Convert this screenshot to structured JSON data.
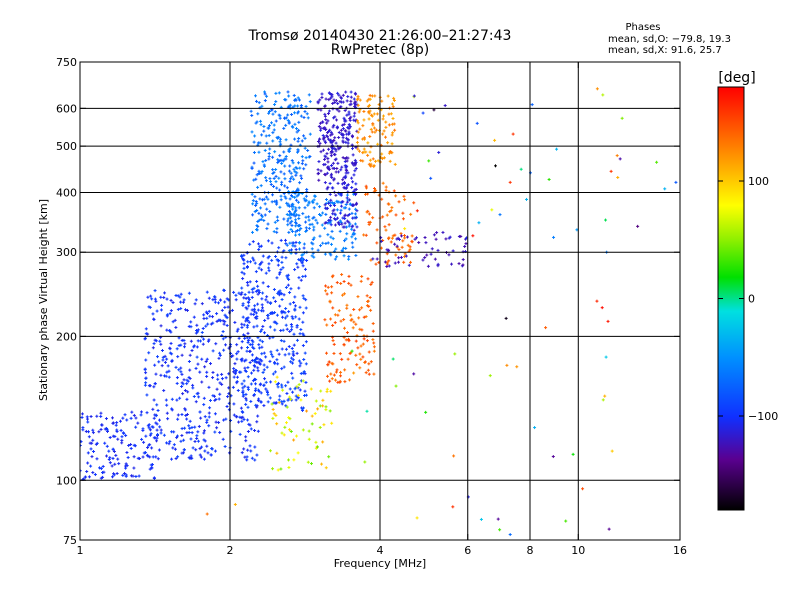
{
  "chart_data": {
    "type": "scatter",
    "title": "Tromsø 20140430 21:26:00–21:27:43",
    "subtitle": "RwPretec (8p)",
    "stats": {
      "heading": "Phases",
      "line1": "mean, sd,O: −79.8, 19.3",
      "line2": "mean, sd,X:  91.6, 25.7"
    },
    "xlabel": "Frequency [MHz]",
    "ylabel": "Stationary phase Virtual Height [km]",
    "xscale": "log",
    "yscale": "log",
    "xlim": [
      1,
      16
    ],
    "ylim": [
      75,
      750
    ],
    "xticks": [
      {
        "value": 1,
        "label": "1"
      },
      {
        "value": 2,
        "label": "2"
      },
      {
        "value": 4,
        "label": "4"
      },
      {
        "value": 6,
        "label": "6"
      },
      {
        "value": 8,
        "label": "8"
      },
      {
        "value": 10,
        "label": "10"
      },
      {
        "value": 16,
        "label": "16"
      }
    ],
    "yticks": [
      {
        "value": 75,
        "label": "75"
      },
      {
        "value": 100,
        "label": "100"
      },
      {
        "value": 200,
        "label": "200"
      },
      {
        "value": 300,
        "label": "300"
      },
      {
        "value": 400,
        "label": "400"
      },
      {
        "value": 500,
        "label": "500"
      },
      {
        "value": 600,
        "label": "600"
      },
      {
        "value": 750,
        "label": "750"
      }
    ],
    "x_gridlines": [
      2,
      4,
      6,
      8,
      10
    ],
    "y_gridlines": [
      100,
      200,
      300,
      400,
      500,
      600
    ],
    "grid": true,
    "colorbar": {
      "unit_label": "[deg]",
      "range": [
        -180,
        180
      ],
      "ticks": [
        {
          "value": 100,
          "label": "100"
        },
        {
          "value": 0,
          "label": "0"
        },
        {
          "value": -100,
          "label": "−100"
        }
      ]
    },
    "clusters": [
      {
        "name": "low-blue-band",
        "x_range": [
          1.0,
          1.45
        ],
        "y_range": [
          100,
          140
        ],
        "phase": [
          -110,
          -95
        ],
        "count": 160
      },
      {
        "name": "main-blue-body",
        "x_range": [
          1.35,
          2.3
        ],
        "y_range": [
          110,
          250
        ],
        "phase": [
          -110,
          -90
        ],
        "count": 520
      },
      {
        "name": "blue-column",
        "x_range": [
          2.1,
          2.85
        ],
        "y_range": [
          140,
          320
        ],
        "phase": [
          -105,
          -85
        ],
        "count": 380
      },
      {
        "name": "cyan-upper",
        "x_range": [
          2.2,
          2.9
        ],
        "y_range": [
          330,
          650
        ],
        "phase": [
          -80,
          -55
        ],
        "count": 330
      },
      {
        "name": "cyan-mid",
        "x_range": [
          2.6,
          3.6
        ],
        "y_range": [
          290,
          400
        ],
        "phase": [
          -70,
          -50
        ],
        "count": 150
      },
      {
        "name": "purple-column",
        "x_range": [
          3.0,
          3.6
        ],
        "y_range": [
          420,
          650
        ],
        "phase": [
          -125,
          -110
        ],
        "count": 260
      },
      {
        "name": "purple-lower",
        "x_range": [
          3.1,
          3.6
        ],
        "y_range": [
          330,
          420
        ],
        "phase": [
          -120,
          -105
        ],
        "count": 90
      },
      {
        "name": "yellow-upper",
        "x_range": [
          3.6,
          4.3
        ],
        "y_range": [
          450,
          640
        ],
        "phase": [
          110,
          135
        ],
        "count": 110
      },
      {
        "name": "orange-mid",
        "x_range": [
          3.1,
          3.9
        ],
        "y_range": [
          160,
          270
        ],
        "phase": [
          130,
          155
        ],
        "count": 130
      },
      {
        "name": "orange-right",
        "x_range": [
          3.7,
          4.7
        ],
        "y_range": [
          280,
          420
        ],
        "phase": [
          130,
          150
        ],
        "count": 80
      },
      {
        "name": "green-yellow-low",
        "x_range": [
          2.4,
          3.2
        ],
        "y_range": [
          105,
          165
        ],
        "phase": [
          40,
          120
        ],
        "count": 70
      },
      {
        "name": "violet-right",
        "x_range": [
          3.8,
          6.0
        ],
        "y_range": [
          280,
          330
        ],
        "phase": [
          -130,
          -115
        ],
        "count": 60
      },
      {
        "name": "scattered-upper",
        "x_range": [
          4.3,
          16
        ],
        "y_range": [
          300,
          660
        ],
        "phase": [
          -180,
          180
        ],
        "count": 35
      },
      {
        "name": "scattered-lower",
        "x_range": [
          3.5,
          12
        ],
        "y_range": [
          78,
          250
        ],
        "phase": [
          -180,
          180
        ],
        "count": 30
      }
    ],
    "points": [
      {
        "x": 5.6,
        "y": 88,
        "phase": 160
      },
      {
        "x": 7.4,
        "y": 530,
        "phase": 160
      },
      {
        "x": 7.3,
        "y": 420,
        "phase": 160
      },
      {
        "x": 10.9,
        "y": 237,
        "phase": 165
      },
      {
        "x": 11.2,
        "y": 640,
        "phase": 60
      },
      {
        "x": 12.0,
        "y": 430,
        "phase": 110
      },
      {
        "x": 1.8,
        "y": 85,
        "phase": 135
      },
      {
        "x": 2.05,
        "y": 89,
        "phase": 110
      },
      {
        "x": 7.3,
        "y": 77,
        "phase": -70
      },
      {
        "x": 10.2,
        "y": 96,
        "phase": 150
      },
      {
        "x": 15.7,
        "y": 420,
        "phase": -80
      },
      {
        "x": 11.4,
        "y": 300,
        "phase": -60
      },
      {
        "x": 11.3,
        "y": 150,
        "phase": 110
      }
    ]
  }
}
